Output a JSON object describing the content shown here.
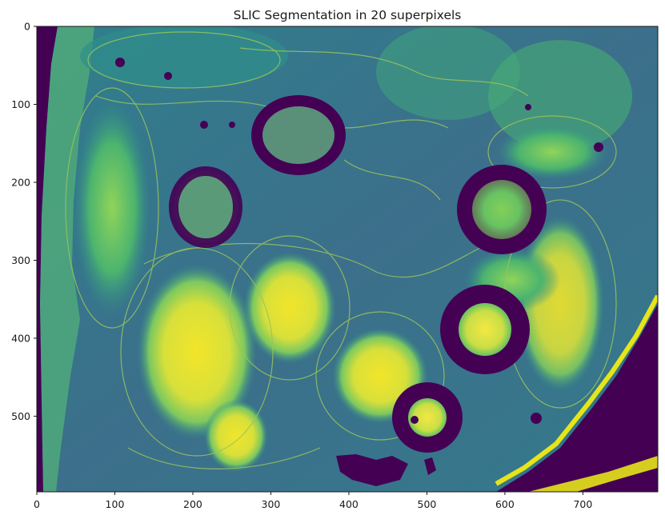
{
  "figure": {
    "title": "SLIC Segmentation in 20 superpixels",
    "x_ticks": [
      "0",
      "100",
      "200",
      "300",
      "400",
      "500",
      "600",
      "700"
    ],
    "y_ticks": [
      "0",
      "100",
      "200",
      "300",
      "400",
      "500"
    ],
    "x_tick_values": [
      0,
      100,
      200,
      300,
      400,
      500,
      600,
      700
    ],
    "y_tick_values": [
      0,
      100,
      200,
      300,
      400,
      500
    ],
    "x_range": [
      0,
      796
    ],
    "y_range": [
      0,
      597
    ],
    "colors": {
      "background": "#3b6f8c",
      "dark": "#440154",
      "mid": "#2a8f8a",
      "green": "#5ec962",
      "yellow": "#e7e419",
      "boundary": "#9ac45a"
    }
  }
}
